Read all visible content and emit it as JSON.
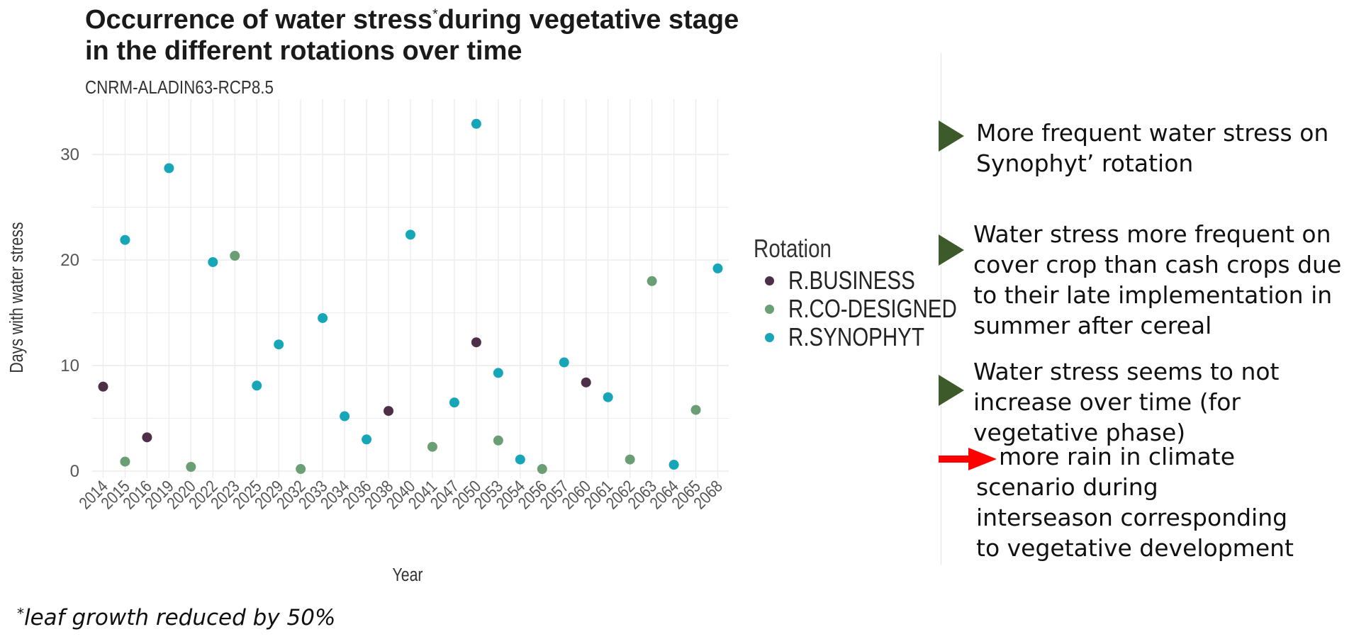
{
  "chart_data": {
    "type": "scatter",
    "title_line1": "Occurrence of water stress",
    "title_star": "*",
    "title_line1_rest": "during vegetative stage",
    "title_line2": "in the different rotations over time",
    "subtitle": "CNRM-ALADIN63-RCP8.5",
    "xlabel": "Year",
    "ylabel": "Days with water stress",
    "ylim": [
      -1,
      34
    ],
    "yticks": [
      "0",
      "10",
      "20",
      "30"
    ],
    "categories": [
      "2014",
      "2015",
      "2016",
      "2019",
      "2020",
      "2022",
      "2023",
      "2025",
      "2029",
      "2032",
      "2033",
      "2034",
      "2036",
      "2038",
      "2040",
      "2041",
      "2047",
      "2050",
      "2053",
      "2054",
      "2056",
      "2057",
      "2060",
      "2061",
      "2062",
      "2063",
      "2064",
      "2065",
      "2068"
    ],
    "legend_title": "Rotation",
    "legend_position": "right",
    "grid": true,
    "series": [
      {
        "name": "R.BUSINESS",
        "color": "#4e2f47",
        "points": [
          {
            "x": "2014",
            "y": 8
          },
          {
            "x": "2016",
            "y": 3.2
          },
          {
            "x": "2038",
            "y": 5.7
          },
          {
            "x": "2050",
            "y": 12.2
          },
          {
            "x": "2060",
            "y": 8.4
          }
        ]
      },
      {
        "name": "R.CO-DESIGNED",
        "color": "#6a9e75",
        "points": [
          {
            "x": "2015",
            "y": 0.9
          },
          {
            "x": "2020",
            "y": 0.4
          },
          {
            "x": "2023",
            "y": 20.4
          },
          {
            "x": "2032",
            "y": 0.2
          },
          {
            "x": "2041",
            "y": 2.3
          },
          {
            "x": "2053",
            "y": 2.9
          },
          {
            "x": "2056",
            "y": 0.2
          },
          {
            "x": "2062",
            "y": 1.1
          },
          {
            "x": "2063",
            "y": 18
          },
          {
            "x": "2065",
            "y": 5.8
          }
        ]
      },
      {
        "name": "R.SYNOPHYT",
        "color": "#17a6b8",
        "points": [
          {
            "x": "2015",
            "y": 21.9
          },
          {
            "x": "2019",
            "y": 28.7
          },
          {
            "x": "2022",
            "y": 19.8
          },
          {
            "x": "2025",
            "y": 8.1
          },
          {
            "x": "2029",
            "y": 12
          },
          {
            "x": "2033",
            "y": 14.5
          },
          {
            "x": "2034",
            "y": 5.2
          },
          {
            "x": "2036",
            "y": 3
          },
          {
            "x": "2040",
            "y": 22.4
          },
          {
            "x": "2047",
            "y": 6.5
          },
          {
            "x": "2050",
            "y": 32.9
          },
          {
            "x": "2053",
            "y": 9.3
          },
          {
            "x": "2054",
            "y": 1.1
          },
          {
            "x": "2057",
            "y": 10.3
          },
          {
            "x": "2061",
            "y": 7
          },
          {
            "x": "2064",
            "y": 0.6
          },
          {
            "x": "2068",
            "y": 19.2
          }
        ]
      }
    ]
  },
  "notes": [
    {
      "text": "More frequent water stress on\nSynophyt’ rotation",
      "arrow_color": "#3d5a2a"
    },
    {
      "text": "Water stress more frequent on\ncover crop than cash crops due\nto their late implementation in\nsummer after cereal",
      "arrow_color": "#3d5a2a"
    },
    {
      "text": "Water stress seems to not\nincrease over time (for\nvegetative phase)",
      "arrow_color": "#3d5a2a"
    }
  ],
  "note_extra": {
    "text": "more rain in climate\nscenario during\ninterseason corresponding\nto vegetative development",
    "arrow_color": "#ff0000"
  },
  "footnote": {
    "star": "*",
    "text": "leaf growth reduced by 50%"
  }
}
